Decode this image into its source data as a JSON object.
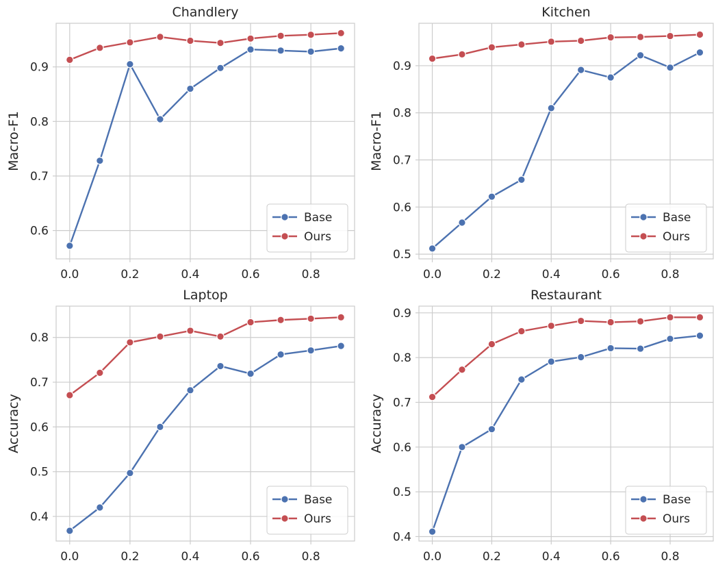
{
  "colors": {
    "Base": "#4c72b0",
    "Ours": "#c44e52",
    "grid": "#cccccc",
    "text": "#262626"
  },
  "chart_data": [
    {
      "type": "line",
      "title": "Chandlery",
      "xlabel": "",
      "ylabel": "Macro-F1",
      "x": [
        0.0,
        0.1,
        0.2,
        0.3,
        0.4,
        0.5,
        0.6,
        0.7,
        0.8,
        0.9
      ],
      "xticks": [
        0.0,
        0.2,
        0.4,
        0.6,
        0.8
      ],
      "xtick_labels": [
        "0.0",
        "0.2",
        "0.4",
        "0.6",
        "0.8"
      ],
      "yticks": [
        0.6,
        0.7,
        0.8,
        0.9
      ],
      "ytick_labels": [
        "0.6",
        "0.7",
        "0.8",
        "0.9"
      ],
      "xlim": [
        -0.045,
        0.945
      ],
      "ylim": [
        0.548,
        0.98
      ],
      "legend": "lower-right",
      "grid": true,
      "series": [
        {
          "name": "Base",
          "values": [
            0.572,
            0.728,
            0.905,
            0.804,
            0.86,
            0.898,
            0.932,
            0.93,
            0.928,
            0.934
          ]
        },
        {
          "name": "Ours",
          "values": [
            0.913,
            0.935,
            0.945,
            0.955,
            0.948,
            0.944,
            0.952,
            0.957,
            0.959,
            0.962
          ]
        }
      ]
    },
    {
      "type": "line",
      "title": "Kitchen",
      "xlabel": "",
      "ylabel": "Macro-F1",
      "x": [
        0.0,
        0.1,
        0.2,
        0.3,
        0.4,
        0.5,
        0.6,
        0.7,
        0.8,
        0.9
      ],
      "xticks": [
        0.0,
        0.2,
        0.4,
        0.6,
        0.8
      ],
      "xtick_labels": [
        "0.0",
        "0.2",
        "0.4",
        "0.6",
        "0.8"
      ],
      "yticks": [
        0.5,
        0.6,
        0.7,
        0.8,
        0.9
      ],
      "ytick_labels": [
        "0.5",
        "0.6",
        "0.7",
        "0.8",
        "0.9"
      ],
      "xlim": [
        -0.045,
        0.945
      ],
      "ylim": [
        0.49,
        0.99
      ],
      "legend": "lower-right",
      "grid": true,
      "series": [
        {
          "name": "Base",
          "values": [
            0.512,
            0.567,
            0.622,
            0.658,
            0.81,
            0.891,
            0.875,
            0.922,
            0.896,
            0.928
          ]
        },
        {
          "name": "Ours",
          "values": [
            0.915,
            0.924,
            0.939,
            0.945,
            0.951,
            0.953,
            0.96,
            0.961,
            0.963,
            0.966
          ]
        }
      ]
    },
    {
      "type": "line",
      "title": "Laptop",
      "xlabel": "",
      "ylabel": "Accuracy",
      "x": [
        0.0,
        0.1,
        0.2,
        0.3,
        0.4,
        0.5,
        0.6,
        0.7,
        0.8,
        0.9
      ],
      "xticks": [
        0.0,
        0.2,
        0.4,
        0.6,
        0.8
      ],
      "xtick_labels": [
        "0.0",
        "0.2",
        "0.4",
        "0.6",
        "0.8"
      ],
      "yticks": [
        0.4,
        0.5,
        0.6,
        0.7,
        0.8
      ],
      "ytick_labels": [
        "0.4",
        "0.5",
        "0.6",
        "0.7",
        "0.8"
      ],
      "xlim": [
        -0.045,
        0.945
      ],
      "ylim": [
        0.345,
        0.87
      ],
      "legend": "lower-right",
      "grid": true,
      "series": [
        {
          "name": "Base",
          "values": [
            0.368,
            0.42,
            0.497,
            0.6,
            0.682,
            0.736,
            0.719,
            0.762,
            0.771,
            0.781
          ]
        },
        {
          "name": "Ours",
          "values": [
            0.671,
            0.721,
            0.789,
            0.802,
            0.815,
            0.802,
            0.834,
            0.839,
            0.842,
            0.845
          ]
        }
      ]
    },
    {
      "type": "line",
      "title": "Restaurant",
      "xlabel": "",
      "ylabel": "Accuracy",
      "x": [
        0.0,
        0.1,
        0.2,
        0.3,
        0.4,
        0.5,
        0.6,
        0.7,
        0.8,
        0.9
      ],
      "xticks": [
        0.0,
        0.2,
        0.4,
        0.6,
        0.8
      ],
      "xtick_labels": [
        "0.0",
        "0.2",
        "0.4",
        "0.6",
        "0.8"
      ],
      "yticks": [
        0.4,
        0.5,
        0.6,
        0.7,
        0.8,
        0.9
      ],
      "ytick_labels": [
        "0.4",
        "0.5",
        "0.6",
        "0.7",
        "0.8",
        "0.9"
      ],
      "xlim": [
        -0.045,
        0.945
      ],
      "ylim": [
        0.39,
        0.915
      ],
      "legend": "lower-right",
      "grid": true,
      "series": [
        {
          "name": "Base",
          "values": [
            0.411,
            0.6,
            0.64,
            0.751,
            0.791,
            0.801,
            0.821,
            0.82,
            0.842,
            0.849
          ]
        },
        {
          "name": "Ours",
          "values": [
            0.712,
            0.773,
            0.83,
            0.859,
            0.871,
            0.882,
            0.879,
            0.881,
            0.89,
            0.89
          ]
        }
      ]
    }
  ]
}
